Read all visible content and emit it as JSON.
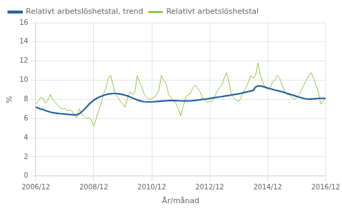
{
  "chart_data": {
    "type": "line",
    "xlabel": "År/månad",
    "ylabel": "%",
    "categories": [
      "2006/12",
      null,
      null,
      null,
      null,
      null,
      null,
      null,
      null,
      null,
      null,
      null,
      null,
      null,
      null,
      null,
      null,
      null,
      null,
      null,
      null,
      null,
      null,
      null,
      "2008/12",
      null,
      null,
      null,
      null,
      null,
      null,
      null,
      null,
      null,
      null,
      null,
      null,
      null,
      null,
      null,
      null,
      null,
      null,
      null,
      null,
      null,
      null,
      null,
      "2010/12",
      null,
      null,
      null,
      null,
      null,
      null,
      null,
      null,
      null,
      null,
      null,
      null,
      null,
      null,
      null,
      null,
      null,
      null,
      null,
      null,
      null,
      null,
      null,
      "2012/12",
      null,
      null,
      null,
      null,
      null,
      null,
      null,
      null,
      null,
      null,
      null,
      null,
      null,
      null,
      null,
      null,
      null,
      null,
      null,
      null,
      null,
      null,
      null,
      "2014/12",
      null,
      null,
      null,
      null,
      null,
      null,
      null,
      null,
      null,
      null,
      null,
      null,
      null,
      null,
      null,
      null,
      null,
      null,
      null,
      null,
      null,
      null,
      null,
      "2016/12"
    ],
    "series": [
      {
        "name": "Relativt arbetslöshetstal",
        "color": "#8dc63f",
        "values": [
          7.5,
          7.8,
          8.2,
          8.1,
          7.6,
          7.9,
          8.5,
          8.0,
          7.7,
          7.4,
          7.2,
          7.0,
          7.1,
          6.8,
          6.9,
          6.8,
          6.3,
          6.1,
          7.0,
          6.5,
          6.2,
          6.0,
          6.1,
          5.9,
          5.2,
          6.0,
          6.8,
          7.5,
          8.5,
          9.2,
          10.2,
          10.5,
          9.5,
          8.5,
          8.2,
          7.8,
          7.5,
          7.2,
          8.2,
          8.8,
          8.5,
          8.7,
          10.5,
          9.8,
          9.2,
          8.5,
          8.2,
          8.0,
          8.1,
          8.2,
          8.5,
          9.0,
          10.5,
          10.0,
          9.6,
          8.5,
          8.2,
          7.9,
          7.6,
          7.0,
          6.3,
          7.2,
          8.2,
          8.5,
          8.6,
          9.2,
          9.5,
          9.2,
          8.8,
          8.2,
          7.9,
          7.7,
          7.8,
          7.8,
          8.3,
          8.8,
          9.2,
          9.5,
          10.2,
          10.8,
          9.8,
          8.5,
          8.2,
          7.9,
          7.8,
          8.2,
          8.8,
          9.2,
          9.8,
          10.5,
          10.2,
          10.5,
          11.8,
          10.5,
          9.8,
          9.2,
          9.0,
          9.2,
          9.8,
          10.0,
          10.5,
          10.2,
          9.5,
          8.8,
          8.5,
          8.5,
          8.2,
          8.0,
          8.2,
          8.5,
          9.0,
          9.5,
          10.0,
          10.5,
          10.8,
          10.2,
          9.5,
          8.8,
          7.5,
          7.8,
          8.2
        ]
      },
      {
        "name": "Relativt arbetslöshetstal, trend",
        "color": "#2060a0",
        "values": [
          7.2,
          7.1,
          7.0,
          6.95,
          6.85,
          6.75,
          6.68,
          6.62,
          6.58,
          6.55,
          6.52,
          6.5,
          6.48,
          6.45,
          6.42,
          6.4,
          6.38,
          6.4,
          6.5,
          6.7,
          6.95,
          7.2,
          7.48,
          7.72,
          7.92,
          8.08,
          8.2,
          8.32,
          8.42,
          8.5,
          8.56,
          8.6,
          8.62,
          8.62,
          8.6,
          8.56,
          8.5,
          8.44,
          8.36,
          8.26,
          8.15,
          8.04,
          7.95,
          7.86,
          7.8,
          7.76,
          7.74,
          7.74,
          7.74,
          7.76,
          7.78,
          7.8,
          7.82,
          7.84,
          7.86,
          7.87,
          7.88,
          7.88,
          7.87,
          7.86,
          7.85,
          7.84,
          7.84,
          7.84,
          7.85,
          7.87,
          7.9,
          7.93,
          7.97,
          8.0,
          8.03,
          8.06,
          8.1,
          8.14,
          8.18,
          8.22,
          8.26,
          8.3,
          8.34,
          8.38,
          8.42,
          8.46,
          8.5,
          8.54,
          8.58,
          8.64,
          8.7,
          8.76,
          8.82,
          8.88,
          8.93,
          9.3,
          9.4,
          9.4,
          9.35,
          9.28,
          9.2,
          9.12,
          9.05,
          8.98,
          8.92,
          8.86,
          8.8,
          8.72,
          8.64,
          8.56,
          8.48,
          8.4,
          8.32,
          8.24,
          8.16,
          8.1,
          8.06,
          8.04,
          8.04,
          8.06,
          8.08,
          8.1,
          8.12,
          8.12,
          8.1
        ]
      }
    ],
    "ylim": [
      0,
      16
    ],
    "yticks": [
      0,
      2,
      4,
      6,
      8,
      10,
      12,
      14,
      16
    ],
    "grid": true,
    "legend": "upper left"
  }
}
